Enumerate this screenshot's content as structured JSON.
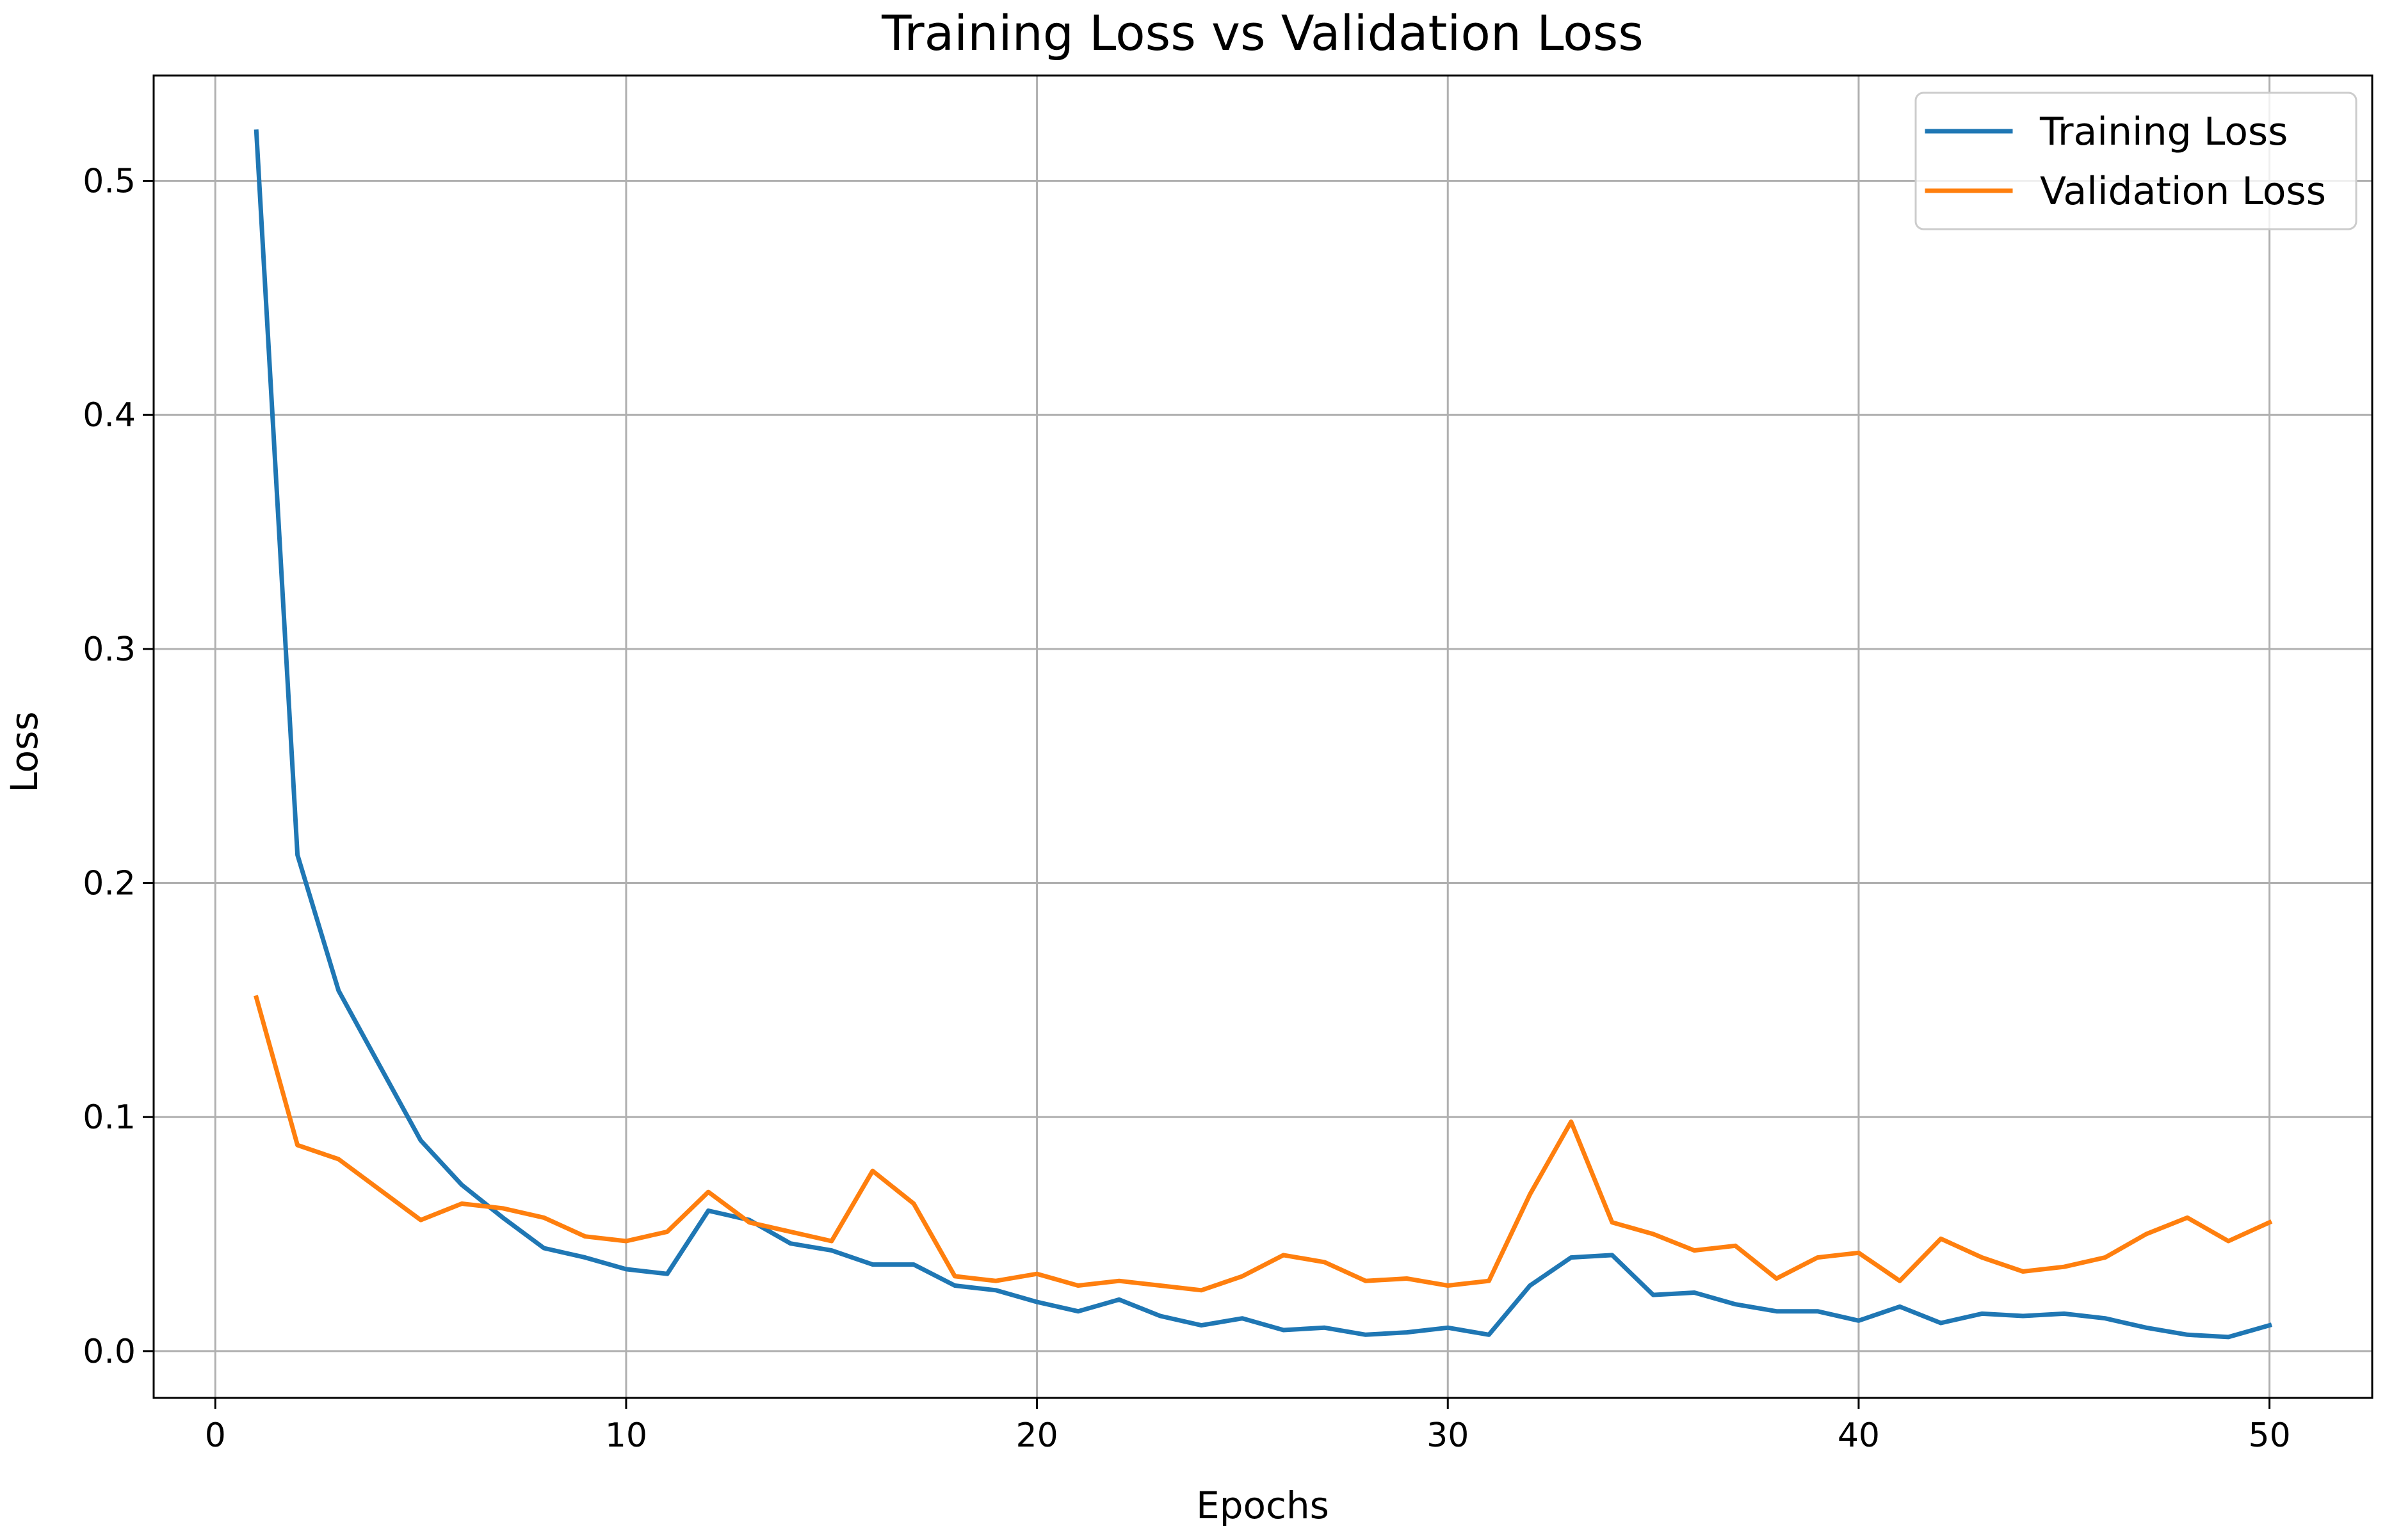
{
  "chart_data": {
    "type": "line",
    "title": "Training Loss vs Validation Loss",
    "xlabel": "Epochs",
    "ylabel": "Loss",
    "xlim": [
      -1.5,
      52.5
    ],
    "ylim": [
      -0.02,
      0.545
    ],
    "xticks": [
      0,
      10,
      20,
      30,
      40,
      50
    ],
    "xtick_labels": [
      "0",
      "10",
      "20",
      "30",
      "40",
      "50"
    ],
    "yticks": [
      0.0,
      0.1,
      0.2,
      0.3,
      0.4,
      0.5
    ],
    "ytick_labels": [
      "0.0",
      "0.1",
      "0.2",
      "0.3",
      "0.4",
      "0.5"
    ],
    "grid": true,
    "legend_position": "top-right",
    "x": [
      1,
      2,
      3,
      4,
      5,
      6,
      7,
      8,
      9,
      10,
      11,
      12,
      13,
      14,
      15,
      16,
      17,
      18,
      19,
      20,
      21,
      22,
      23,
      24,
      25,
      26,
      27,
      28,
      29,
      30,
      31,
      32,
      33,
      34,
      35,
      36,
      37,
      38,
      39,
      40,
      41,
      42,
      43,
      44,
      45,
      46,
      47,
      48,
      49,
      50
    ],
    "series": [
      {
        "name": "Training Loss",
        "color": "#1f77b4",
        "values": [
          0.521,
          0.212,
          0.154,
          0.122,
          0.09,
          0.071,
          0.057,
          0.044,
          0.04,
          0.035,
          0.033,
          0.06,
          0.056,
          0.046,
          0.043,
          0.037,
          0.037,
          0.028,
          0.026,
          0.021,
          0.017,
          0.022,
          0.015,
          0.011,
          0.014,
          0.009,
          0.01,
          0.007,
          0.008,
          0.01,
          0.007,
          0.028,
          0.04,
          0.041,
          0.024,
          0.025,
          0.02,
          0.017,
          0.017,
          0.013,
          0.019,
          0.012,
          0.016,
          0.015,
          0.016,
          0.014,
          0.01,
          0.007,
          0.006,
          0.011
        ]
      },
      {
        "name": "Validation Loss",
        "color": "#ff7f0e",
        "values": [
          0.151,
          0.088,
          0.082,
          0.069,
          0.056,
          0.063,
          0.061,
          0.057,
          0.049,
          0.047,
          0.051,
          0.068,
          0.055,
          0.051,
          0.047,
          0.077,
          0.063,
          0.032,
          0.03,
          0.033,
          0.028,
          0.03,
          0.028,
          0.026,
          0.032,
          0.041,
          0.038,
          0.03,
          0.031,
          0.028,
          0.03,
          0.067,
          0.098,
          0.055,
          0.05,
          0.043,
          0.045,
          0.031,
          0.04,
          0.042,
          0.03,
          0.048,
          0.04,
          0.034,
          0.036,
          0.04,
          0.05,
          0.057,
          0.047,
          0.055
        ]
      }
    ]
  }
}
